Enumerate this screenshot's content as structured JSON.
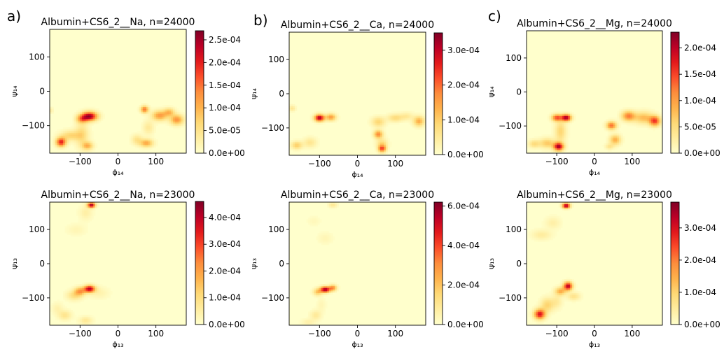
{
  "panel_letters": [
    "a)",
    "b)",
    "c)"
  ],
  "colormap": [
    "#ffffcc",
    "#ffeda0",
    "#fed976",
    "#feb24c",
    "#fd8d3c",
    "#fc4e2a",
    "#e31a1c",
    "#bd0026",
    "#800026"
  ],
  "chart_data": [
    {
      "type": "heatmap",
      "title": "Albumin+CS6_2__Na, n=24000",
      "xlabel": "ϕ₁₄",
      "ylabel": "ψ₁₄",
      "xlim": [
        -180,
        180
      ],
      "ylim": [
        -180,
        180
      ],
      "xticks": [
        -100,
        0,
        100
      ],
      "yticks": [
        100,
        0,
        -100
      ],
      "xtick_labels": [
        "−100",
        "0",
        "100"
      ],
      "ytick_labels": [
        "100",
        "0",
        "−100"
      ],
      "cbar_max": 0.00027,
      "cbar_ticks": [
        0,
        5e-05,
        0.0001,
        0.00015,
        0.0002,
        0.00025
      ],
      "cbar_labels": [
        "0.0e+00",
        "5.0e-05",
        "1.0e-04",
        "1.5e-04",
        "2.0e-04",
        "2.5e-04"
      ],
      "blobs": [
        {
          "x": -75,
          "y": -72,
          "sx": 14,
          "sy": 9,
          "v": 0.00025
        },
        {
          "x": -95,
          "y": -80,
          "sx": 10,
          "sy": 8,
          "v": 0.00012
        },
        {
          "x": -150,
          "y": -147,
          "sx": 9,
          "sy": 9,
          "v": 0.0002
        },
        {
          "x": -125,
          "y": -128,
          "sx": 18,
          "sy": 10,
          "v": 7e-05
        },
        {
          "x": -95,
          "y": -125,
          "sx": 12,
          "sy": 25,
          "v": 6e-05
        },
        {
          "x": -80,
          "y": -158,
          "sx": 10,
          "sy": 8,
          "v": 0.0001
        },
        {
          "x": 70,
          "y": -52,
          "sx": 7,
          "sy": 7,
          "v": 0.00015
        },
        {
          "x": 110,
          "y": -70,
          "sx": 14,
          "sy": 10,
          "v": 0.00012
        },
        {
          "x": 155,
          "y": -82,
          "sx": 12,
          "sy": 10,
          "v": 0.00013
        },
        {
          "x": 135,
          "y": -60,
          "sx": 10,
          "sy": 8,
          "v": 9e-05
        },
        {
          "x": 75,
          "y": -150,
          "sx": 12,
          "sy": 8,
          "v": 0.00011
        },
        {
          "x": 50,
          "y": -140,
          "sx": 10,
          "sy": 10,
          "v": 5e-05
        },
        {
          "x": 80,
          "y": -105,
          "sx": 10,
          "sy": 14,
          "v": 4e-05
        },
        {
          "x": -178,
          "y": -55,
          "sx": 5,
          "sy": 6,
          "v": 3e-05
        }
      ]
    },
    {
      "type": "heatmap",
      "title": "Albumin+CS6_2__Ca, n=24000",
      "xlabel": "ϕ₁₄",
      "ylabel": "ψ₁₄",
      "xlim": [
        -180,
        180
      ],
      "ylim": [
        -180,
        180
      ],
      "xticks": [
        -100,
        0,
        100
      ],
      "yticks": [
        100,
        0,
        -100
      ],
      "xtick_labels": [
        "−100",
        "0",
        "100"
      ],
      "ytick_labels": [
        "100",
        "0",
        "−100"
      ],
      "cbar_max": 0.00035,
      "cbar_ticks": [
        0,
        0.0001,
        0.0002,
        0.0003
      ],
      "cbar_labels": [
        "0.0e+00",
        "1.0e-04",
        "2.0e-04",
        "3.0e-04"
      ],
      "blobs": [
        {
          "x": -100,
          "y": -70,
          "sx": 9,
          "sy": 7,
          "v": 0.00032
        },
        {
          "x": -70,
          "y": -68,
          "sx": 9,
          "sy": 7,
          "v": 0.00016
        },
        {
          "x": -160,
          "y": -150,
          "sx": 10,
          "sy": 8,
          "v": 0.0001
        },
        {
          "x": -125,
          "y": -142,
          "sx": 12,
          "sy": 10,
          "v": 6e-05
        },
        {
          "x": -172,
          "y": -42,
          "sx": 6,
          "sy": 6,
          "v": 6e-05
        },
        {
          "x": 55,
          "y": -118,
          "sx": 8,
          "sy": 8,
          "v": 0.00018
        },
        {
          "x": 65,
          "y": -160,
          "sx": 7,
          "sy": 7,
          "v": 0.00022
        },
        {
          "x": 65,
          "y": -145,
          "sx": 10,
          "sy": 10,
          "v": 8e-05
        },
        {
          "x": 55,
          "y": -82,
          "sx": 12,
          "sy": 10,
          "v": 9e-05
        },
        {
          "x": 100,
          "y": -70,
          "sx": 14,
          "sy": 8,
          "v": 8e-05
        },
        {
          "x": 162,
          "y": -80,
          "sx": 10,
          "sy": 10,
          "v": 0.00014
        },
        {
          "x": 130,
          "y": -65,
          "sx": 12,
          "sy": 8,
          "v": 5e-05
        }
      ]
    },
    {
      "type": "heatmap",
      "title": "Albumin+CS6_2__Mg, n=24000",
      "xlabel": "ϕ₁₄",
      "ylabel": "ψ₁₄",
      "xlim": [
        -180,
        180
      ],
      "ylim": [
        -180,
        180
      ],
      "xticks": [
        -100,
        0,
        100
      ],
      "yticks": [
        100,
        0,
        -100
      ],
      "xtick_labels": [
        "−100",
        "0",
        "100"
      ],
      "ytick_labels": [
        "100",
        "0",
        "−100"
      ],
      "cbar_max": 0.00023,
      "cbar_ticks": [
        0,
        5e-05,
        0.0001,
        0.00015,
        0.0002
      ],
      "cbar_labels": [
        "0.0e+00",
        "5.0e-05",
        "1.0e-04",
        "1.5e-04",
        "2.0e-04"
      ],
      "blobs": [
        {
          "x": -75,
          "y": -75,
          "sx": 9,
          "sy": 7,
          "v": 0.00021
        },
        {
          "x": -100,
          "y": -75,
          "sx": 9,
          "sy": 7,
          "v": 0.00014
        },
        {
          "x": -95,
          "y": -160,
          "sx": 9,
          "sy": 8,
          "v": 0.00021
        },
        {
          "x": -125,
          "y": -150,
          "sx": 15,
          "sy": 10,
          "v": 7e-05
        },
        {
          "x": -90,
          "y": -115,
          "sx": 10,
          "sy": 22,
          "v": 6e-05
        },
        {
          "x": -160,
          "y": -152,
          "sx": 10,
          "sy": 8,
          "v": 5e-05
        },
        {
          "x": 45,
          "y": -98,
          "sx": 9,
          "sy": 8,
          "v": 0.00013
        },
        {
          "x": 90,
          "y": -70,
          "sx": 12,
          "sy": 10,
          "v": 0.00012
        },
        {
          "x": 160,
          "y": -85,
          "sx": 10,
          "sy": 10,
          "v": 0.00015
        },
        {
          "x": 130,
          "y": -75,
          "sx": 18,
          "sy": 12,
          "v": 8e-05
        },
        {
          "x": 55,
          "y": -140,
          "sx": 10,
          "sy": 10,
          "v": 9e-05
        },
        {
          "x": 40,
          "y": -160,
          "sx": 8,
          "sy": 6,
          "v": 4e-05
        }
      ]
    },
    {
      "type": "heatmap",
      "title": "Albumin+CS6_2__Na, n=23000",
      "xlabel": "ϕ₁₃",
      "ylabel": "ψ₁₃",
      "xlim": [
        -180,
        180
      ],
      "ylim": [
        -180,
        180
      ],
      "xticks": [
        -100,
        0,
        100
      ],
      "yticks": [
        100,
        0,
        -100
      ],
      "xtick_labels": [
        "−100",
        "0",
        "100"
      ],
      "ytick_labels": [
        "100",
        "0",
        "−100"
      ],
      "cbar_max": 0.00046,
      "cbar_ticks": [
        0,
        0.0001,
        0.0002,
        0.0003,
        0.0004
      ],
      "cbar_labels": [
        "0.0e+00",
        "1.0e-04",
        "2.0e-04",
        "3.0e-04",
        "4.0e-04"
      ],
      "blobs": [
        {
          "x": -70,
          "y": 172,
          "sx": 7,
          "sy": 5,
          "v": 0.00043
        },
        {
          "x": -85,
          "y": 150,
          "sx": 12,
          "sy": 15,
          "v": 5e-05
        },
        {
          "x": -110,
          "y": 100,
          "sx": 18,
          "sy": 12,
          "v": 3e-05
        },
        {
          "x": -75,
          "y": -73,
          "sx": 10,
          "sy": 7,
          "v": 0.0004
        },
        {
          "x": -100,
          "y": -80,
          "sx": 10,
          "sy": 8,
          "v": 0.0002
        },
        {
          "x": -115,
          "y": -92,
          "sx": 14,
          "sy": 10,
          "v": 0.0001
        },
        {
          "x": -50,
          "y": -85,
          "sx": 18,
          "sy": 12,
          "v": 4e-05
        },
        {
          "x": -140,
          "y": -150,
          "sx": 12,
          "sy": 10,
          "v": 8e-05
        },
        {
          "x": -85,
          "y": -165,
          "sx": 12,
          "sy": 8,
          "v": 7e-05
        },
        {
          "x": -160,
          "y": -130,
          "sx": 10,
          "sy": 12,
          "v": 4e-05
        }
      ]
    },
    {
      "type": "heatmap",
      "title": "Albumin+CS6_2__Ca, n=23000",
      "xlabel": "ϕ₁₃",
      "ylabel": "ψ₁₃",
      "xlim": [
        -180,
        180
      ],
      "ylim": [
        -180,
        180
      ],
      "xticks": [
        -100,
        0,
        100
      ],
      "yticks": [
        100,
        0,
        -100
      ],
      "xtick_labels": [
        "−100",
        "0",
        "100"
      ],
      "ytick_labels": [
        "100",
        "0",
        "−100"
      ],
      "cbar_max": 0.00062,
      "cbar_ticks": [
        0,
        0.0002,
        0.0004,
        0.0006
      ],
      "cbar_labels": [
        "0.0e+00",
        "2.0e-04",
        "4.0e-04",
        "6.0e-04"
      ],
      "blobs": [
        {
          "x": -85,
          "y": -75,
          "sx": 9,
          "sy": 6,
          "v": 0.00058
        },
        {
          "x": -65,
          "y": -70,
          "sx": 7,
          "sy": 6,
          "v": 0.0003
        },
        {
          "x": -105,
          "y": -82,
          "sx": 8,
          "sy": 7,
          "v": 0.0002
        },
        {
          "x": -65,
          "y": 172,
          "sx": 8,
          "sy": 5,
          "v": 0.0001
        },
        {
          "x": -85,
          "y": 75,
          "sx": 14,
          "sy": 12,
          "v": 4e-05
        },
        {
          "x": -115,
          "y": 125,
          "sx": 12,
          "sy": 10,
          "v": 3e-05
        },
        {
          "x": -110,
          "y": -150,
          "sx": 10,
          "sy": 10,
          "v": 9e-05
        },
        {
          "x": -130,
          "y": -170,
          "sx": 12,
          "sy": 6,
          "v": 6e-05
        },
        {
          "x": -95,
          "y": -120,
          "sx": 8,
          "sy": 14,
          "v": 4e-05
        }
      ]
    },
    {
      "type": "heatmap",
      "title": "Albumin+CS6_2__Mg, n=23000",
      "xlabel": "ϕ₁₃",
      "ylabel": "ψ₁₃",
      "xlim": [
        -180,
        180
      ],
      "ylim": [
        -180,
        180
      ],
      "xticks": [
        -100,
        0,
        100
      ],
      "yticks": [
        100,
        0,
        -100
      ],
      "xtick_labels": [
        "−100",
        "0",
        "100"
      ],
      "ytick_labels": [
        "100",
        "0",
        "−100"
      ],
      "cbar_max": 0.00038,
      "cbar_ticks": [
        0,
        0.0001,
        0.0002,
        0.0003
      ],
      "cbar_labels": [
        "0.0e+00",
        "1.0e-04",
        "2.0e-04",
        "3.0e-04"
      ],
      "blobs": [
        {
          "x": -75,
          "y": 170,
          "sx": 7,
          "sy": 5,
          "v": 0.00036
        },
        {
          "x": -70,
          "y": -65,
          "sx": 8,
          "sy": 8,
          "v": 0.00034
        },
        {
          "x": -90,
          "y": -80,
          "sx": 10,
          "sy": 8,
          "v": 0.00015
        },
        {
          "x": -145,
          "y": -147,
          "sx": 10,
          "sy": 10,
          "v": 0.0003
        },
        {
          "x": -125,
          "y": -120,
          "sx": 12,
          "sy": 14,
          "v": 0.0001
        },
        {
          "x": -140,
          "y": 85,
          "sx": 18,
          "sy": 10,
          "v": 5e-05
        },
        {
          "x": -110,
          "y": 120,
          "sx": 14,
          "sy": 12,
          "v": 4e-05
        },
        {
          "x": -55,
          "y": -95,
          "sx": 12,
          "sy": 8,
          "v": 7e-05
        },
        {
          "x": -100,
          "y": -110,
          "sx": 10,
          "sy": 14,
          "v": 5e-05
        }
      ]
    }
  ]
}
